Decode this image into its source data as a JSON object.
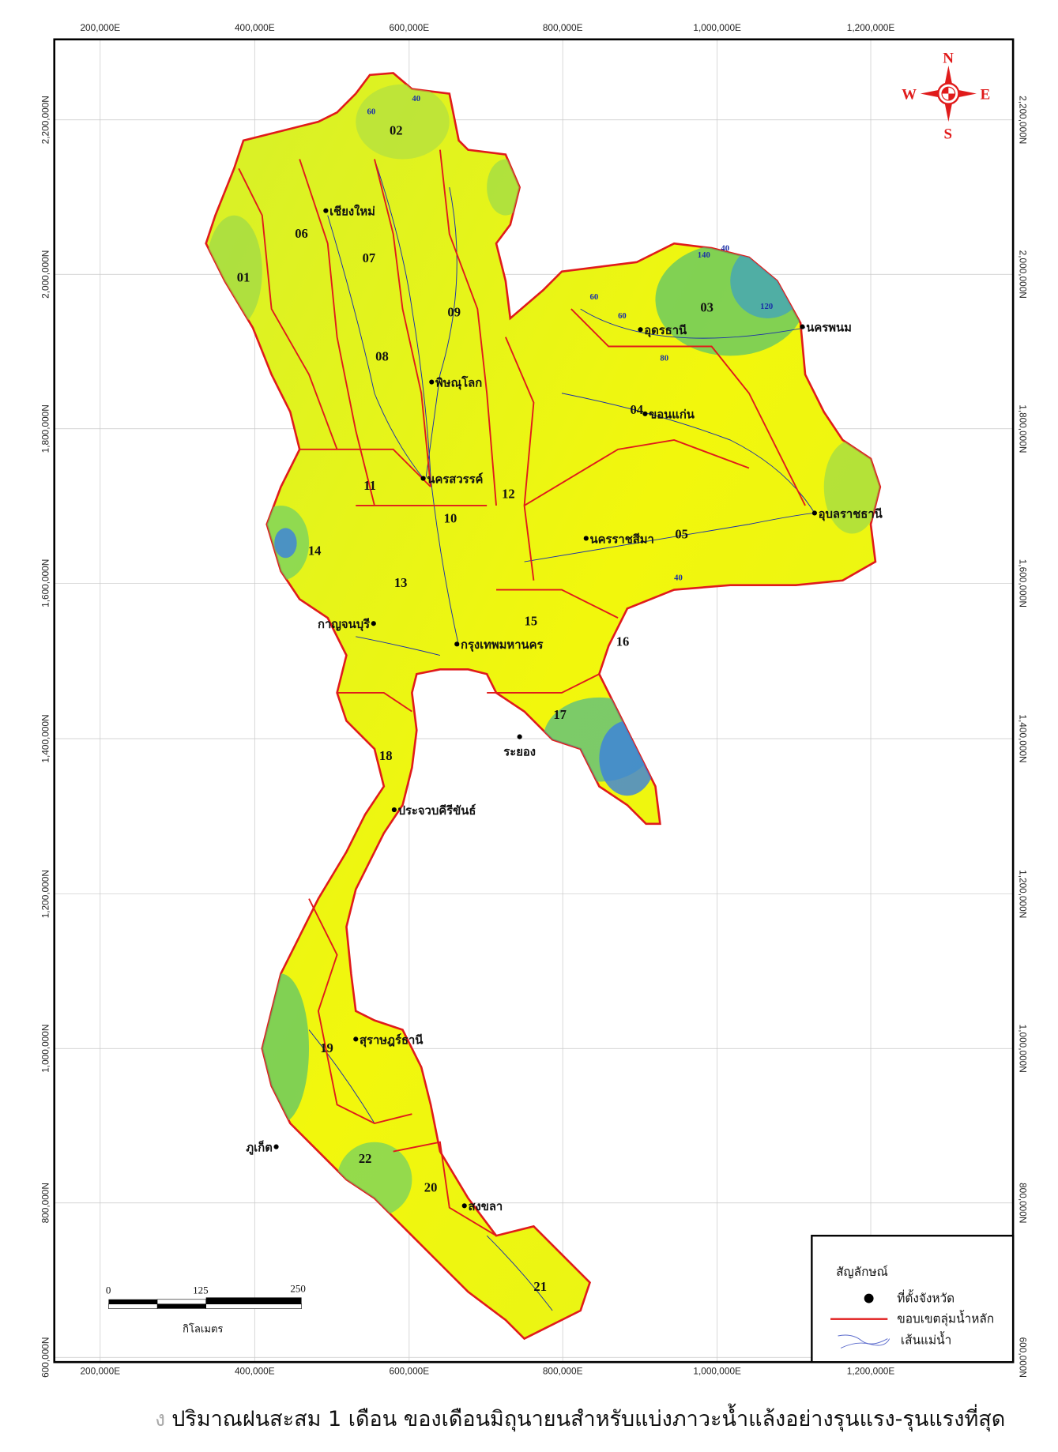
{
  "map": {
    "x_ticks": [
      "200,000E",
      "400,000E",
      "600,000E",
      "800,000E",
      "1,000,000E",
      "1,200,000E"
    ],
    "y_ticks": [
      "2,200,000N",
      "2,000,000N",
      "1,800,000N",
      "1,600,000N",
      "1,400,000N",
      "1,200,000N",
      "1,000,000N",
      "800,000N",
      "600,000N"
    ],
    "colors": {
      "low_rain": "#ffff00",
      "mid_rain": "#b8e63c",
      "high_rain": "#3a8fd8",
      "basin_boundary": "#e01b1b",
      "river": "#1a2fa8",
      "province_dot": "#000000"
    },
    "basins": [
      "01",
      "02",
      "03",
      "04",
      "05",
      "06",
      "07",
      "08",
      "09",
      "10",
      "11",
      "12",
      "13",
      "14",
      "15",
      "16",
      "17",
      "18",
      "19",
      "20",
      "21",
      "22"
    ],
    "provinces": [
      "เชียงใหม่",
      "พิษณุโลก",
      "นครสวรรค์",
      "อุดรธานี",
      "นครพนม",
      "ขอนแก่น",
      "อุบลราชธานี",
      "นครราชสีมา",
      "กาญจนบุรี",
      "กรุงเทพมหานคร",
      "ระยอง",
      "ประจวบคีรีขันธ์",
      "สุราษฎร์ธานี",
      "ภูเก็ต",
      "สงขลา"
    ],
    "contour_labels": [
      "40",
      "60",
      "40",
      "60",
      "80",
      "120",
      "140",
      "60",
      "40"
    ]
  },
  "compass": {
    "n": "N",
    "e": "E",
    "s": "S",
    "w": "W",
    "icon": "compass-rose-icon"
  },
  "scale_bar": {
    "labels": [
      "0",
      "125",
      "250"
    ],
    "unit": "กิโลเมตร"
  },
  "legend": {
    "title": "สัญลักษณ์",
    "items": [
      {
        "icon": "dot-icon",
        "label": "ที่ตั้งจังหวัด"
      },
      {
        "icon": "red-line-icon",
        "label": "ขอบเขตลุ่มน้ำหลัก"
      },
      {
        "icon": "river-line-icon",
        "label": "เส้นแม่น้ำ"
      }
    ]
  },
  "caption": {
    "fragment": "ง",
    "text": "ปริมาณฝนสะสม 1 เดือน ของเดือนมิถุนายนสำหรับแบ่งภาวะน้ำแล้งอย่างรุนแรง-รุนแรงที่สุด"
  }
}
